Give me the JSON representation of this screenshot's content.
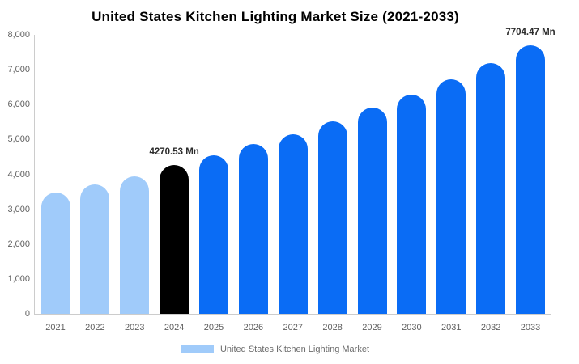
{
  "chart_data": {
    "type": "bar",
    "title": "United States Kitchen Lighting Market Size (2021-2033)",
    "unit": "Mn",
    "categories": [
      "2021",
      "2022",
      "2023",
      "2024",
      "2025",
      "2026",
      "2027",
      "2028",
      "2029",
      "2030",
      "2031",
      "2032",
      "2033"
    ],
    "values": [
      3480,
      3720,
      3950,
      4270.53,
      4540,
      4860,
      5140,
      5530,
      5920,
      6280,
      6720,
      7200,
      7704.47
    ],
    "bar_colors": [
      "#A0CBFA",
      "#A0CBFA",
      "#A0CBFA",
      "#000000",
      "#0A6CF5",
      "#0A6CF5",
      "#0A6CF5",
      "#0A6CF5",
      "#0A6CF5",
      "#0A6CF5",
      "#0A6CF5",
      "#0A6CF5",
      "#0A6CF5"
    ],
    "annotations": [
      {
        "index": 3,
        "text": "4270.53 Mn"
      },
      {
        "index": 12,
        "text": "7704.47 Mn"
      }
    ],
    "xlabel": "",
    "ylabel": "",
    "ylim": [
      0,
      8000
    ],
    "y_tick_step": 1000,
    "y_tick_labels": [
      "0",
      "1,000",
      "2,000",
      "3,000",
      "4,000",
      "5,000",
      "6,000",
      "7,000",
      "8,000"
    ],
    "grid": false,
    "legend": {
      "position": "bottom",
      "entries": [
        {
          "label": "United States Kitchen Lighting Market",
          "color": "#A0CBFA"
        }
      ]
    }
  },
  "colors": {
    "historical_bar": "#A0CBFA",
    "base_year_bar": "#000000",
    "forecast_bar": "#0A6CF5",
    "axis_line": "#cccccc",
    "tick_text": "#606060",
    "title_text": "#000000",
    "annotation_text": "#2b2b2b"
  }
}
